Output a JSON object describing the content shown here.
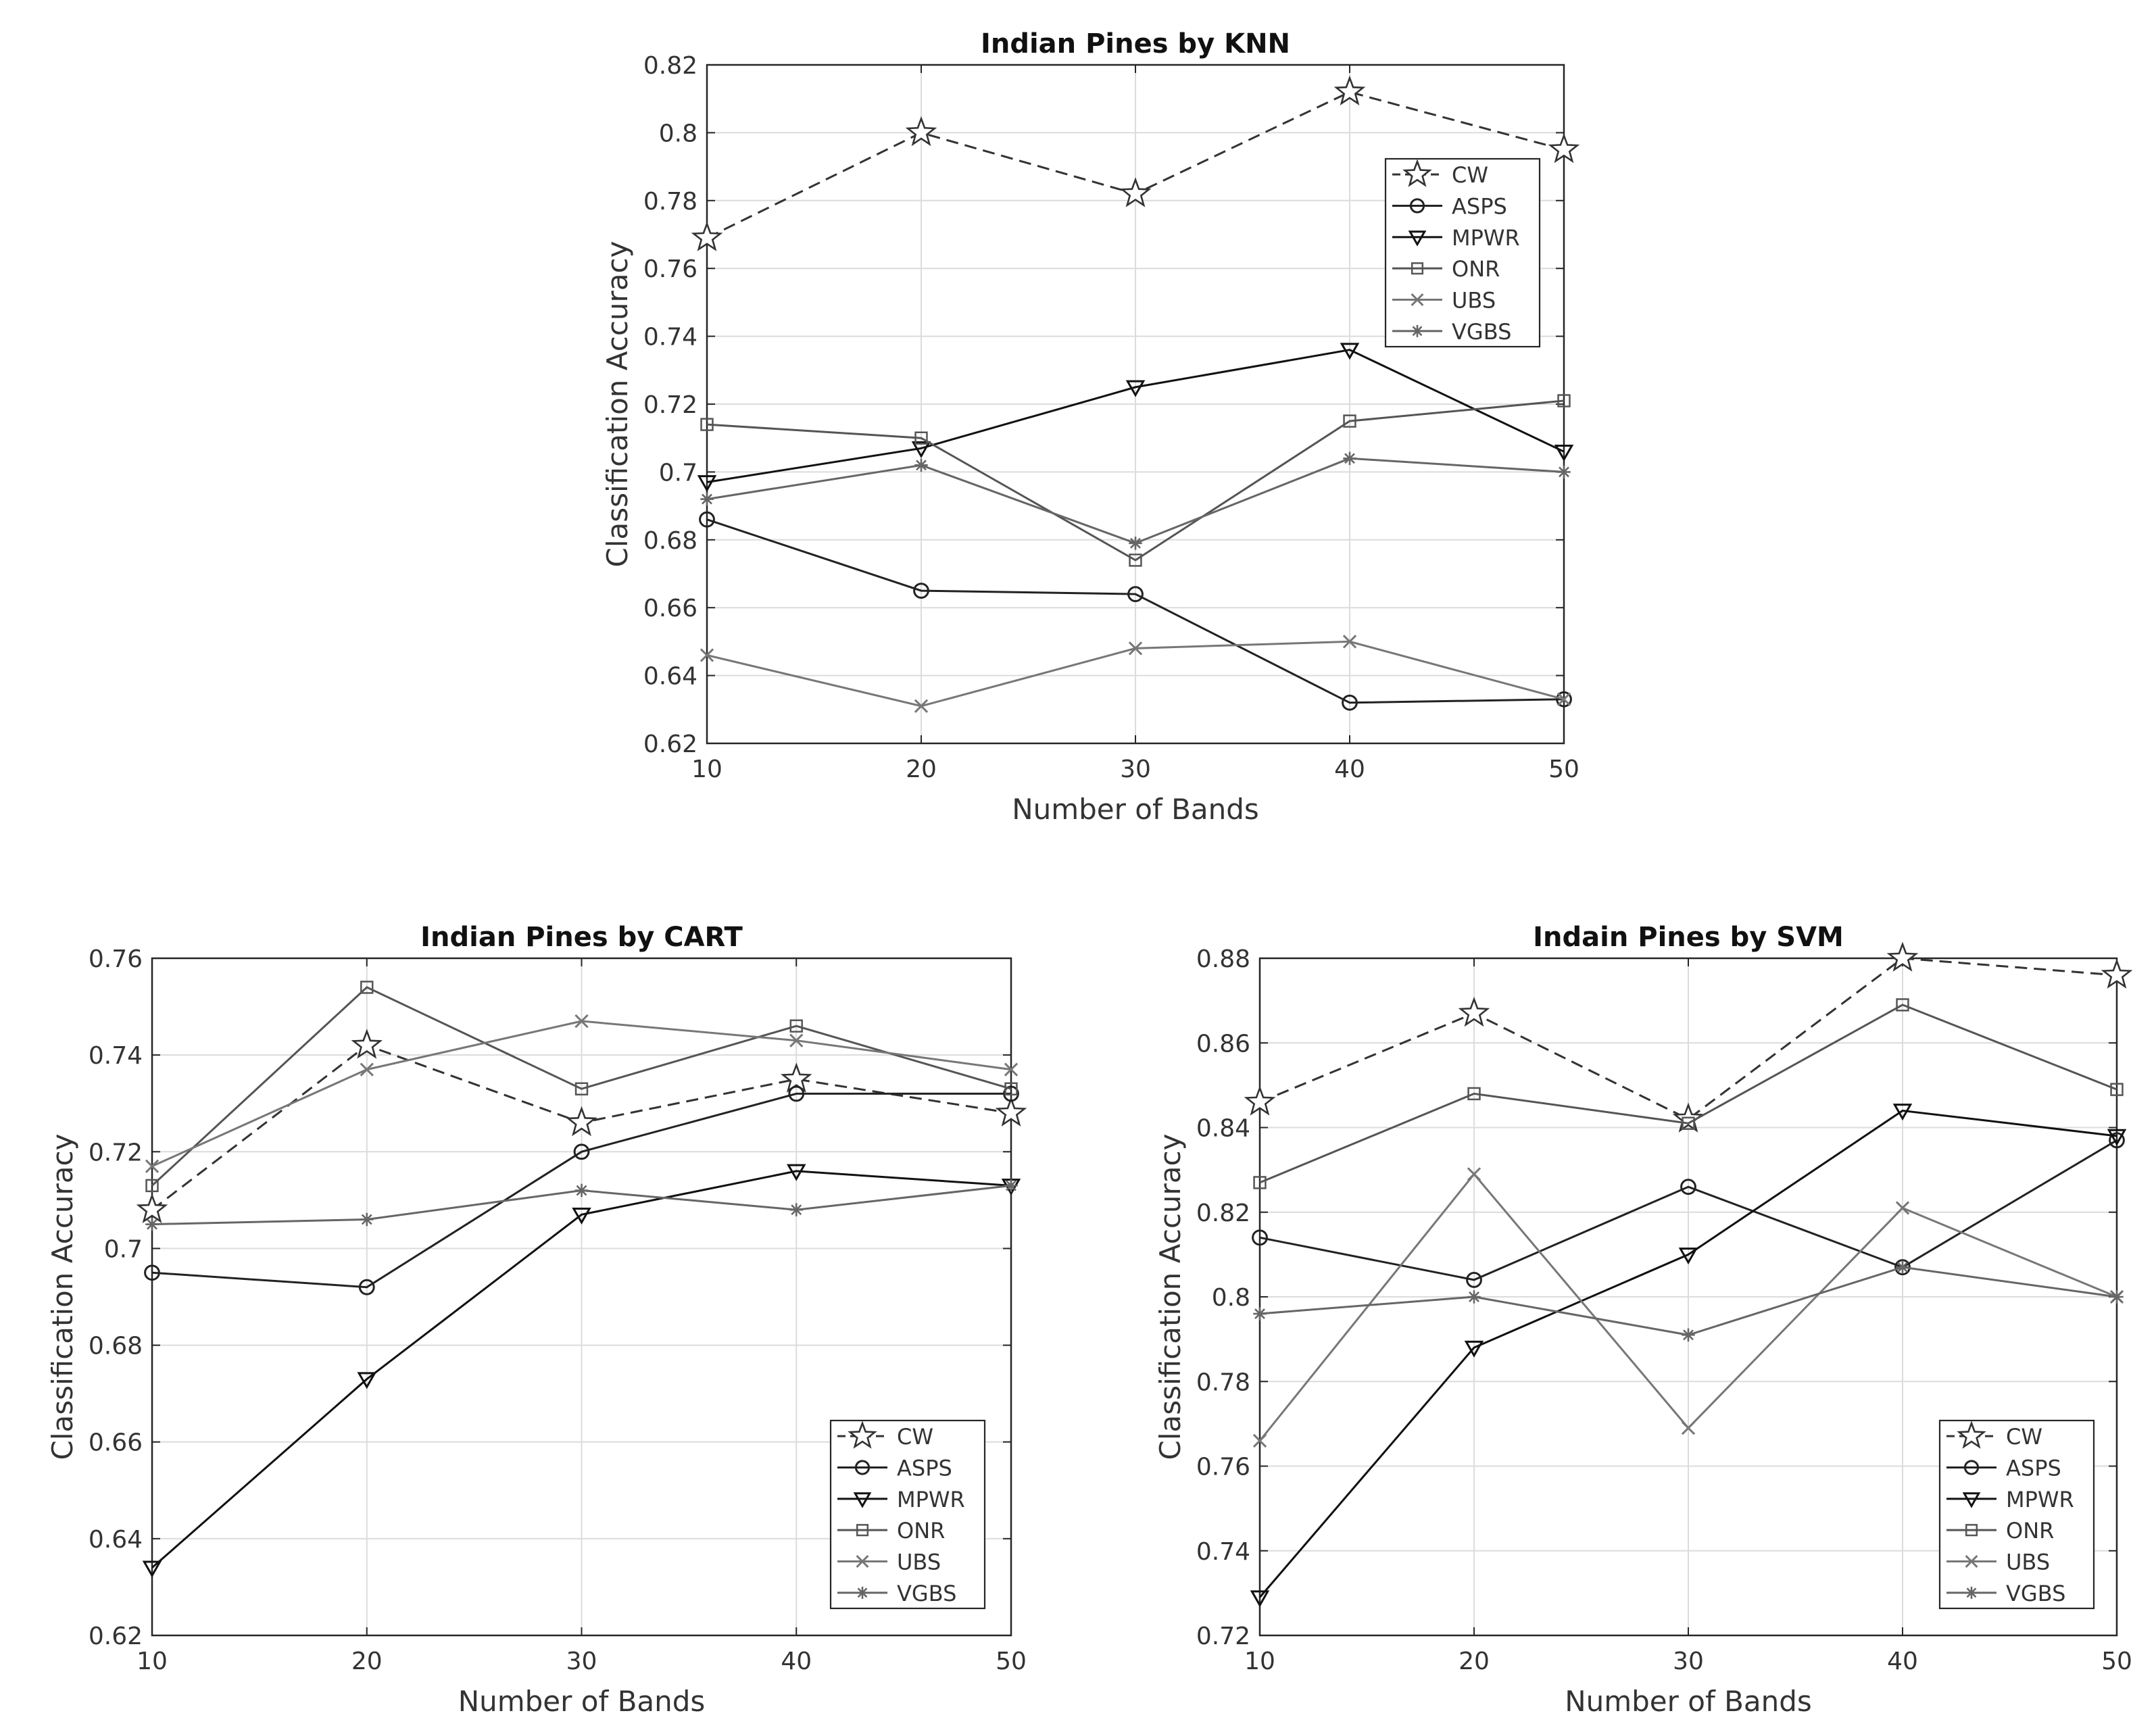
{
  "chart_data": [
    {
      "type": "line",
      "title": "Indian Pines by KNN",
      "xlabel": "Number of Bands",
      "ylabel": "Classification Accuracy",
      "x": [
        10,
        20,
        30,
        40,
        50
      ],
      "xlim": [
        10,
        50
      ],
      "ylim": [
        0.62,
        0.82
      ],
      "xticks": [
        10,
        20,
        30,
        40,
        50
      ],
      "yticks": [
        0.62,
        0.64,
        0.66,
        0.68,
        0.7,
        0.72,
        0.74,
        0.76,
        0.78,
        0.8,
        0.82
      ],
      "ytick_labels": [
        "0.62",
        "0.64",
        "0.66",
        "0.68",
        "0.7",
        "0.72",
        "0.74",
        "0.76",
        "0.78",
        "0.8",
        "0.82"
      ],
      "grid": true,
      "legend_position": "top-right",
      "series": [
        {
          "name": "CW",
          "marker": "star",
          "dashed": true,
          "color": "#333333",
          "values": [
            0.769,
            0.8,
            0.782,
            0.812,
            0.795
          ]
        },
        {
          "name": "ASPS",
          "marker": "circle",
          "dashed": false,
          "color": "#222222",
          "values": [
            0.686,
            0.665,
            0.664,
            0.632,
            0.633
          ]
        },
        {
          "name": "MPWR",
          "marker": "triangle-down",
          "dashed": false,
          "color": "#111111",
          "values": [
            0.697,
            0.707,
            0.725,
            0.736,
            0.706
          ]
        },
        {
          "name": "ONR",
          "marker": "square",
          "dashed": false,
          "color": "#555555",
          "values": [
            0.714,
            0.71,
            0.674,
            0.715,
            0.721
          ]
        },
        {
          "name": "UBS",
          "marker": "x",
          "dashed": false,
          "color": "#777777",
          "values": [
            0.646,
            0.631,
            0.648,
            0.65,
            0.633
          ]
        },
        {
          "name": "VGBS",
          "marker": "asterisk",
          "dashed": false,
          "color": "#666666",
          "values": [
            0.692,
            0.702,
            0.679,
            0.704,
            0.7
          ]
        }
      ]
    },
    {
      "type": "line",
      "title": "Indian Pines by CART",
      "xlabel": "Number of Bands",
      "ylabel": "Classification Accuracy",
      "x": [
        10,
        20,
        30,
        40,
        50
      ],
      "xlim": [
        10,
        50
      ],
      "ylim": [
        0.62,
        0.76
      ],
      "xticks": [
        10,
        20,
        30,
        40,
        50
      ],
      "yticks": [
        0.62,
        0.64,
        0.66,
        0.68,
        0.7,
        0.72,
        0.74,
        0.76
      ],
      "ytick_labels": [
        "0.62",
        "0.64",
        "0.66",
        "0.68",
        "0.7",
        "0.72",
        "0.74",
        "0.76"
      ],
      "grid": true,
      "legend_position": "bottom-right",
      "series": [
        {
          "name": "CW",
          "marker": "star",
          "dashed": true,
          "color": "#333333",
          "values": [
            0.708,
            0.742,
            0.726,
            0.735,
            0.728
          ]
        },
        {
          "name": "ASPS",
          "marker": "circle",
          "dashed": false,
          "color": "#222222",
          "values": [
            0.695,
            0.692,
            0.72,
            0.732,
            0.732
          ]
        },
        {
          "name": "MPWR",
          "marker": "triangle-down",
          "dashed": false,
          "color": "#111111",
          "values": [
            0.634,
            0.673,
            0.707,
            0.716,
            0.713
          ]
        },
        {
          "name": "ONR",
          "marker": "square",
          "dashed": false,
          "color": "#555555",
          "values": [
            0.713,
            0.754,
            0.733,
            0.746,
            0.733
          ]
        },
        {
          "name": "UBS",
          "marker": "x",
          "dashed": false,
          "color": "#777777",
          "values": [
            0.717,
            0.737,
            0.747,
            0.743,
            0.737
          ]
        },
        {
          "name": "VGBS",
          "marker": "asterisk",
          "dashed": false,
          "color": "#666666",
          "values": [
            0.705,
            0.706,
            0.712,
            0.708,
            0.713
          ]
        }
      ]
    },
    {
      "type": "line",
      "title": "Indain Pines by SVM",
      "xlabel": "Number of Bands",
      "ylabel": "Classification Accuracy",
      "x": [
        10,
        20,
        30,
        40,
        50
      ],
      "xlim": [
        10,
        50
      ],
      "ylim": [
        0.72,
        0.88
      ],
      "xticks": [
        10,
        20,
        30,
        40,
        50
      ],
      "yticks": [
        0.72,
        0.74,
        0.76,
        0.78,
        0.8,
        0.82,
        0.84,
        0.86,
        0.88
      ],
      "ytick_labels": [
        "0.72",
        "0.74",
        "0.76",
        "0.78",
        "0.8",
        "0.82",
        "0.84",
        "0.86",
        "0.88"
      ],
      "grid": true,
      "legend_position": "bottom-right",
      "series": [
        {
          "name": "CW",
          "marker": "star",
          "dashed": true,
          "color": "#333333",
          "values": [
            0.846,
            0.867,
            0.842,
            0.88,
            0.876
          ]
        },
        {
          "name": "ASPS",
          "marker": "circle",
          "dashed": false,
          "color": "#222222",
          "values": [
            0.814,
            0.804,
            0.826,
            0.807,
            0.837
          ]
        },
        {
          "name": "MPWR",
          "marker": "triangle-down",
          "dashed": false,
          "color": "#111111",
          "values": [
            0.729,
            0.788,
            0.81,
            0.844,
            0.838
          ]
        },
        {
          "name": "ONR",
          "marker": "square",
          "dashed": false,
          "color": "#555555",
          "values": [
            0.827,
            0.848,
            0.841,
            0.869,
            0.849
          ]
        },
        {
          "name": "UBS",
          "marker": "x",
          "dashed": false,
          "color": "#777777",
          "values": [
            0.766,
            0.829,
            0.769,
            0.821,
            0.8
          ]
        },
        {
          "name": "VGBS",
          "marker": "asterisk",
          "dashed": false,
          "color": "#666666",
          "values": [
            0.796,
            0.8,
            0.791,
            0.807,
            0.8
          ]
        }
      ]
    }
  ]
}
